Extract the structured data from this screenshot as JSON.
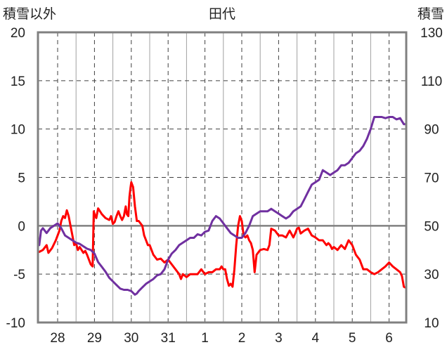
{
  "chart_data": {
    "type": "line",
    "title": "田代",
    "left_axis_label": "積雪以外",
    "right_axis_label": "積雪",
    "x_categories": [
      "28",
      "29",
      "30",
      "31",
      "1",
      "2",
      "3",
      "4",
      "5",
      "6"
    ],
    "left_ylim": [
      -10,
      20
    ],
    "left_ticks": [
      20,
      15,
      10,
      5,
      0,
      -5,
      -10
    ],
    "right_ylim": [
      10,
      130
    ],
    "right_ticks": [
      130,
      110,
      90,
      70,
      50,
      30,
      10
    ],
    "grid": true,
    "colors": {
      "red_series": "#ff0000",
      "purple_series": "#7030a0",
      "frame": "#808080"
    },
    "series": [
      {
        "axis": "left",
        "color": "#ff0000",
        "points": [
          [
            -0.5,
            -2.7
          ],
          [
            -0.4,
            -2.5
          ],
          [
            -0.3,
            -2.0
          ],
          [
            -0.25,
            -2.8
          ],
          [
            -0.15,
            -2.3
          ],
          [
            -0.05,
            -1.5
          ],
          [
            0.05,
            -0.5
          ],
          [
            0.1,
            0.5
          ],
          [
            0.15,
            1.0
          ],
          [
            0.2,
            0.8
          ],
          [
            0.25,
            1.6
          ],
          [
            0.3,
            1.0
          ],
          [
            0.35,
            0.0
          ],
          [
            0.4,
            -1.0
          ],
          [
            0.45,
            -2.0
          ],
          [
            0.5,
            -1.8
          ],
          [
            0.55,
            -2.5
          ],
          [
            0.6,
            -2.2
          ],
          [
            0.7,
            -2.8
          ],
          [
            0.75,
            -2.6
          ],
          [
            0.8,
            -3.0
          ],
          [
            0.85,
            -3.5
          ],
          [
            0.9,
            -4.0
          ],
          [
            0.95,
            -4.2
          ],
          [
            0.98,
            1.5
          ],
          [
            1.02,
            1.0
          ],
          [
            1.05,
            0.8
          ],
          [
            1.1,
            1.8
          ],
          [
            1.2,
            1.2
          ],
          [
            1.3,
            0.8
          ],
          [
            1.4,
            0.6
          ],
          [
            1.45,
            1.0
          ],
          [
            1.5,
            0.2
          ],
          [
            1.55,
            0.4
          ],
          [
            1.6,
            1.0
          ],
          [
            1.65,
            1.5
          ],
          [
            1.7,
            1.0
          ],
          [
            1.75,
            0.6
          ],
          [
            1.8,
            1.0
          ],
          [
            1.85,
            2.0
          ],
          [
            1.88,
            1.2
          ],
          [
            1.92,
            1.0
          ],
          [
            1.95,
            3.0
          ],
          [
            1.98,
            4.0
          ],
          [
            2.0,
            4.5
          ],
          [
            2.05,
            4.0
          ],
          [
            2.1,
            2.0
          ],
          [
            2.15,
            0.5
          ],
          [
            2.2,
            0.5
          ],
          [
            2.3,
            0.0
          ],
          [
            2.35,
            -1.0
          ],
          [
            2.4,
            -1.5
          ],
          [
            2.45,
            -2.0
          ],
          [
            2.5,
            -2.0
          ],
          [
            2.55,
            -2.5
          ],
          [
            2.6,
            -3.0
          ],
          [
            2.7,
            -3.5
          ],
          [
            2.8,
            -3.4
          ],
          [
            2.9,
            -3.8
          ],
          [
            3.0,
            -3.5
          ],
          [
            3.1,
            -4.0
          ],
          [
            3.2,
            -4.5
          ],
          [
            3.3,
            -5.0
          ],
          [
            3.35,
            -5.5
          ],
          [
            3.4,
            -5.0
          ],
          [
            3.5,
            -5.3
          ],
          [
            3.6,
            -5.0
          ],
          [
            3.7,
            -5.0
          ],
          [
            3.8,
            -5.0
          ],
          [
            3.9,
            -4.5
          ],
          [
            4.0,
            -5.0
          ],
          [
            4.1,
            -4.8
          ],
          [
            4.2,
            -4.8
          ],
          [
            4.3,
            -4.5
          ],
          [
            4.4,
            -4.5
          ],
          [
            4.45,
            -4.2
          ],
          [
            4.5,
            -4.5
          ],
          [
            4.55,
            -4.5
          ],
          [
            4.6,
            -5.5
          ],
          [
            4.65,
            -6.2
          ],
          [
            4.7,
            -6.0
          ],
          [
            4.75,
            -6.3
          ],
          [
            4.8,
            -4.5
          ],
          [
            4.85,
            -2.0
          ],
          [
            4.9,
            0.0
          ],
          [
            4.95,
            1.0
          ],
          [
            5.0,
            0.5
          ],
          [
            5.05,
            -1.0
          ],
          [
            5.1,
            -1.2
          ],
          [
            5.15,
            -1.0
          ],
          [
            5.2,
            -1.5
          ],
          [
            5.25,
            -1.8
          ],
          [
            5.3,
            -2.5
          ],
          [
            5.35,
            -4.8
          ],
          [
            5.4,
            -3.0
          ],
          [
            5.5,
            -2.5
          ],
          [
            5.6,
            -2.4
          ],
          [
            5.7,
            -2.5
          ],
          [
            5.75,
            -2.0
          ],
          [
            5.8,
            -0.3
          ],
          [
            5.9,
            -0.5
          ],
          [
            6.0,
            -1.0
          ],
          [
            6.1,
            -1.0
          ],
          [
            6.2,
            -1.2
          ],
          [
            6.3,
            -0.5
          ],
          [
            6.4,
            -1.2
          ],
          [
            6.45,
            -0.8
          ],
          [
            6.5,
            -0.3
          ],
          [
            6.55,
            -0.2
          ],
          [
            6.6,
            -0.8
          ],
          [
            6.7,
            -0.5
          ],
          [
            6.8,
            -0.3
          ],
          [
            6.9,
            -1.0
          ],
          [
            7.0,
            -1.2
          ],
          [
            7.1,
            -1.5
          ],
          [
            7.2,
            -1.5
          ],
          [
            7.3,
            -2.0
          ],
          [
            7.35,
            -1.8
          ],
          [
            7.4,
            -2.0
          ],
          [
            7.45,
            -2.4
          ],
          [
            7.5,
            -2.2
          ],
          [
            7.6,
            -2.5
          ],
          [
            7.7,
            -2.0
          ],
          [
            7.8,
            -2.4
          ],
          [
            7.9,
            -1.5
          ],
          [
            8.0,
            -2.0
          ],
          [
            8.1,
            -3.0
          ],
          [
            8.2,
            -3.5
          ],
          [
            8.3,
            -4.5
          ],
          [
            8.4,
            -4.5
          ],
          [
            8.5,
            -4.8
          ],
          [
            8.6,
            -5.0
          ],
          [
            8.7,
            -4.8
          ],
          [
            8.8,
            -4.5
          ],
          [
            8.9,
            -4.2
          ],
          [
            9.0,
            -3.8
          ],
          [
            9.1,
            -4.2
          ],
          [
            9.2,
            -4.5
          ],
          [
            9.3,
            -4.8
          ],
          [
            9.35,
            -5.2
          ],
          [
            9.4,
            -6.3
          ],
          [
            9.45,
            -6.4
          ]
        ]
      },
      {
        "axis": "right",
        "color": "#7030a0",
        "points": [
          [
            -0.5,
            42
          ],
          [
            -0.45,
            48
          ],
          [
            -0.4,
            49
          ],
          [
            -0.3,
            47
          ],
          [
            -0.2,
            49
          ],
          [
            -0.1,
            50
          ],
          [
            0.0,
            51
          ],
          [
            0.1,
            49
          ],
          [
            0.2,
            46
          ],
          [
            0.3,
            45
          ],
          [
            0.4,
            44
          ],
          [
            0.5,
            43
          ],
          [
            0.6,
            42.5
          ],
          [
            0.7,
            41.5
          ],
          [
            0.8,
            40.5
          ],
          [
            0.9,
            40
          ],
          [
            1.0,
            38.5
          ],
          [
            1.1,
            35
          ],
          [
            1.2,
            33
          ],
          [
            1.3,
            31
          ],
          [
            1.4,
            28.5
          ],
          [
            1.5,
            27
          ],
          [
            1.6,
            25.5
          ],
          [
            1.7,
            24
          ],
          [
            1.8,
            23.5
          ],
          [
            1.9,
            23.5
          ],
          [
            2.0,
            23
          ],
          [
            2.1,
            21.5
          ],
          [
            2.15,
            22
          ],
          [
            2.2,
            23
          ],
          [
            2.3,
            24.5
          ],
          [
            2.4,
            26
          ],
          [
            2.5,
            27
          ],
          [
            2.6,
            28
          ],
          [
            2.7,
            29.5
          ],
          [
            2.8,
            30
          ],
          [
            2.9,
            32
          ],
          [
            3.0,
            36
          ],
          [
            3.1,
            38.5
          ],
          [
            3.2,
            40
          ],
          [
            3.3,
            42
          ],
          [
            3.4,
            43
          ],
          [
            3.5,
            44
          ],
          [
            3.6,
            45
          ],
          [
            3.7,
            45
          ],
          [
            3.8,
            46.5
          ],
          [
            3.9,
            46
          ],
          [
            4.0,
            47.5
          ],
          [
            4.1,
            48
          ],
          [
            4.2,
            52
          ],
          [
            4.3,
            54
          ],
          [
            4.4,
            53
          ],
          [
            4.5,
            51
          ],
          [
            4.6,
            49
          ],
          [
            4.7,
            47
          ],
          [
            4.8,
            46
          ],
          [
            4.9,
            45
          ],
          [
            5.0,
            45
          ],
          [
            5.1,
            47
          ],
          [
            5.2,
            50
          ],
          [
            5.3,
            54
          ],
          [
            5.4,
            55
          ],
          [
            5.5,
            56
          ],
          [
            5.6,
            56
          ],
          [
            5.7,
            56
          ],
          [
            5.8,
            57
          ],
          [
            5.9,
            56
          ],
          [
            6.0,
            55
          ],
          [
            6.1,
            54
          ],
          [
            6.2,
            53
          ],
          [
            6.3,
            54
          ],
          [
            6.4,
            56
          ],
          [
            6.5,
            57
          ],
          [
            6.6,
            58
          ],
          [
            6.7,
            61
          ],
          [
            6.8,
            64
          ],
          [
            6.9,
            67
          ],
          [
            7.0,
            68
          ],
          [
            7.1,
            69
          ],
          [
            7.2,
            73
          ],
          [
            7.3,
            72
          ],
          [
            7.4,
            71
          ],
          [
            7.5,
            72
          ],
          [
            7.6,
            73
          ],
          [
            7.7,
            75
          ],
          [
            7.8,
            75
          ],
          [
            7.9,
            76
          ],
          [
            8.0,
            78
          ],
          [
            8.1,
            80
          ],
          [
            8.2,
            81
          ],
          [
            8.3,
            83
          ],
          [
            8.4,
            86
          ],
          [
            8.5,
            90
          ],
          [
            8.6,
            95
          ],
          [
            8.7,
            95
          ],
          [
            8.8,
            95
          ],
          [
            8.9,
            94.5
          ],
          [
            9.0,
            95
          ],
          [
            9.1,
            95
          ],
          [
            9.2,
            94
          ],
          [
            9.3,
            94.5
          ],
          [
            9.4,
            92
          ],
          [
            9.45,
            92
          ]
        ]
      }
    ]
  }
}
